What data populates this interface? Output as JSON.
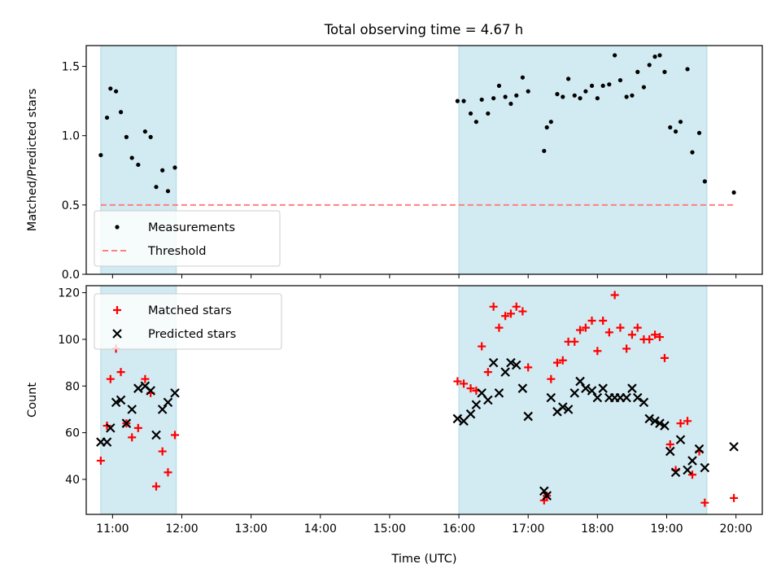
{
  "figure": {
    "title": "Total observing time = 4.67 h"
  },
  "chart_data": [
    {
      "type": "scatter",
      "ylabel": "Matched/Predicted stars",
      "xlabel": "",
      "xlim": [
        10.62,
        20.38
      ],
      "ylim": [
        0.0,
        1.65
      ],
      "yticks": [
        0.0,
        0.5,
        1.0,
        1.5
      ],
      "ytick_labels": [
        "0.0",
        "0.5",
        "1.0",
        "1.5"
      ],
      "shaded_intervals": [
        [
          10.83,
          11.92
        ],
        [
          16.0,
          19.58
        ]
      ],
      "shade_color": "#add8e6",
      "legend": {
        "placement": "lower-left",
        "entries": [
          "Measurements",
          "Threshold"
        ]
      },
      "series": [
        {
          "name": "Measurements",
          "marker": "dot",
          "color": "#000000",
          "x": [
            10.83,
            10.92,
            10.97,
            11.05,
            11.12,
            11.2,
            11.28,
            11.37,
            11.47,
            11.55,
            11.63,
            11.72,
            11.8,
            11.9,
            15.98,
            16.07,
            16.17,
            16.25,
            16.33,
            16.42,
            16.5,
            16.58,
            16.67,
            16.75,
            16.83,
            16.92,
            17.0,
            17.23,
            17.27,
            17.33,
            17.42,
            17.5,
            17.58,
            17.67,
            17.75,
            17.83,
            17.92,
            18.0,
            18.08,
            18.17,
            18.25,
            18.33,
            18.42,
            18.5,
            18.58,
            18.67,
            18.75,
            18.83,
            18.9,
            18.97,
            19.05,
            19.13,
            19.2,
            19.3,
            19.37,
            19.47,
            19.55,
            19.97
          ],
          "y": [
            0.86,
            1.13,
            1.34,
            1.32,
            1.17,
            0.99,
            0.84,
            0.79,
            1.03,
            0.99,
            0.63,
            0.75,
            0.6,
            0.77,
            1.25,
            1.25,
            1.16,
            1.1,
            1.26,
            1.16,
            1.27,
            1.36,
            1.28,
            1.23,
            1.29,
            1.42,
            1.32,
            0.89,
            1.06,
            1.1,
            1.3,
            1.28,
            1.41,
            1.29,
            1.27,
            1.32,
            1.36,
            1.27,
            1.36,
            1.37,
            1.58,
            1.4,
            1.28,
            1.29,
            1.46,
            1.35,
            1.51,
            1.57,
            1.58,
            1.46,
            1.06,
            1.03,
            1.1,
            1.48,
            0.88,
            1.02,
            0.67,
            0.59
          ]
        },
        {
          "name": "Threshold",
          "marker": "dashed-line",
          "color": "#ff7f7f",
          "x": [
            10.83,
            19.97
          ],
          "y": [
            0.5,
            0.5
          ]
        }
      ]
    },
    {
      "type": "scatter",
      "ylabel": "Count",
      "xlabel": "Time (UTC)",
      "xlim": [
        10.62,
        20.38
      ],
      "ylim": [
        25,
        123
      ],
      "yticks": [
        40,
        60,
        80,
        100,
        120
      ],
      "ytick_labels": [
        "40",
        "60",
        "80",
        "100",
        "120"
      ],
      "xticks": [
        11,
        12,
        13,
        14,
        15,
        16,
        17,
        18,
        19,
        20
      ],
      "xtick_labels": [
        "11:00",
        "12:00",
        "13:00",
        "14:00",
        "15:00",
        "16:00",
        "17:00",
        "18:00",
        "19:00",
        "20:00"
      ],
      "shaded_intervals": [
        [
          10.83,
          11.92
        ],
        [
          16.0,
          19.58
        ]
      ],
      "shade_color": "#add8e6",
      "legend": {
        "placement": "top-left",
        "entries": [
          "Matched stars",
          "Predicted stars"
        ]
      },
      "series": [
        {
          "name": "Matched stars",
          "marker": "plus",
          "color": "#ff0000",
          "x": [
            10.83,
            10.92,
            10.97,
            11.05,
            11.12,
            11.2,
            11.28,
            11.37,
            11.47,
            11.55,
            11.63,
            11.72,
            11.8,
            11.9,
            15.98,
            16.07,
            16.17,
            16.25,
            16.33,
            16.42,
            16.5,
            16.58,
            16.67,
            16.75,
            16.83,
            16.92,
            17.0,
            17.23,
            17.27,
            17.33,
            17.42,
            17.5,
            17.58,
            17.67,
            17.75,
            17.83,
            17.92,
            18.0,
            18.08,
            18.17,
            18.25,
            18.33,
            18.42,
            18.5,
            18.58,
            18.67,
            18.75,
            18.83,
            18.9,
            18.97,
            19.05,
            19.13,
            19.2,
            19.3,
            19.37,
            19.47,
            19.55,
            19.97
          ],
          "y": [
            48,
            63,
            83,
            96,
            86,
            64,
            58,
            62,
            83,
            77,
            37,
            52,
            43,
            59,
            82,
            81,
            79,
            78,
            97,
            86,
            114,
            105,
            110,
            111,
            114,
            112,
            88,
            31,
            33,
            83,
            90,
            91,
            99,
            99,
            104,
            105,
            108,
            95,
            108,
            103,
            119,
            105,
            96,
            102,
            105,
            100,
            100,
            102,
            101,
            92,
            55,
            44,
            64,
            65,
            42,
            52,
            30,
            32
          ]
        },
        {
          "name": "Predicted stars",
          "marker": "x",
          "color": "#000000",
          "x": [
            10.83,
            10.92,
            10.97,
            11.05,
            11.12,
            11.2,
            11.28,
            11.37,
            11.47,
            11.55,
            11.63,
            11.72,
            11.8,
            11.9,
            15.98,
            16.07,
            16.17,
            16.25,
            16.33,
            16.42,
            16.5,
            16.58,
            16.67,
            16.75,
            16.83,
            16.92,
            17.0,
            17.23,
            17.27,
            17.33,
            17.42,
            17.5,
            17.58,
            17.67,
            17.75,
            17.83,
            17.92,
            18.0,
            18.08,
            18.17,
            18.25,
            18.33,
            18.42,
            18.5,
            18.58,
            18.67,
            18.75,
            18.83,
            18.9,
            18.97,
            19.05,
            19.13,
            19.2,
            19.3,
            19.37,
            19.47,
            19.55,
            19.97
          ],
          "y": [
            56,
            56,
            62,
            73,
            74,
            64,
            70,
            79,
            80,
            78,
            59,
            70,
            73,
            77,
            66,
            65,
            68,
            72,
            77,
            74,
            90,
            77,
            86,
            90,
            89,
            79,
            67,
            35,
            33,
            75,
            69,
            71,
            70,
            77,
            82,
            79,
            78,
            75,
            79,
            75,
            75,
            75,
            75,
            79,
            75,
            73,
            66,
            65,
            64,
            63,
            52,
            43,
            57,
            44,
            48,
            53,
            45,
            54
          ]
        }
      ]
    }
  ]
}
